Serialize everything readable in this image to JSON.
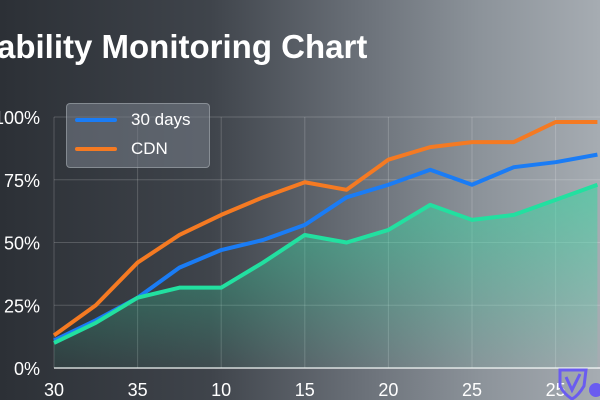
{
  "chart_data": {
    "type": "line",
    "title": "ability Monitoring Chart",
    "x_tick_labels": [
      "30",
      "35",
      "10",
      "15",
      "20",
      "25",
      "25"
    ],
    "y_tick_labels": [
      "0%",
      "25%",
      "50%",
      "75%",
      "100%"
    ],
    "ylim": [
      0,
      100
    ],
    "grid": true,
    "legend_position": "top-left",
    "series": [
      {
        "name": "30 days",
        "color": "#1a7cf5",
        "values": [
          11,
          19,
          28,
          40,
          47,
          51,
          57,
          68,
          73,
          79,
          73,
          80,
          82,
          85
        ]
      },
      {
        "name": "CDN",
        "color": "#f57a22",
        "values": [
          13,
          25,
          42,
          53,
          61,
          68,
          74,
          71,
          83,
          88,
          90,
          90,
          98,
          98
        ]
      },
      {
        "name": "",
        "color": "#22e0a0",
        "area": true,
        "values": [
          10,
          18,
          28,
          32,
          32,
          42,
          53,
          50,
          55,
          65,
          59,
          61,
          67,
          73
        ]
      }
    ]
  },
  "logo_text": "shield logo"
}
